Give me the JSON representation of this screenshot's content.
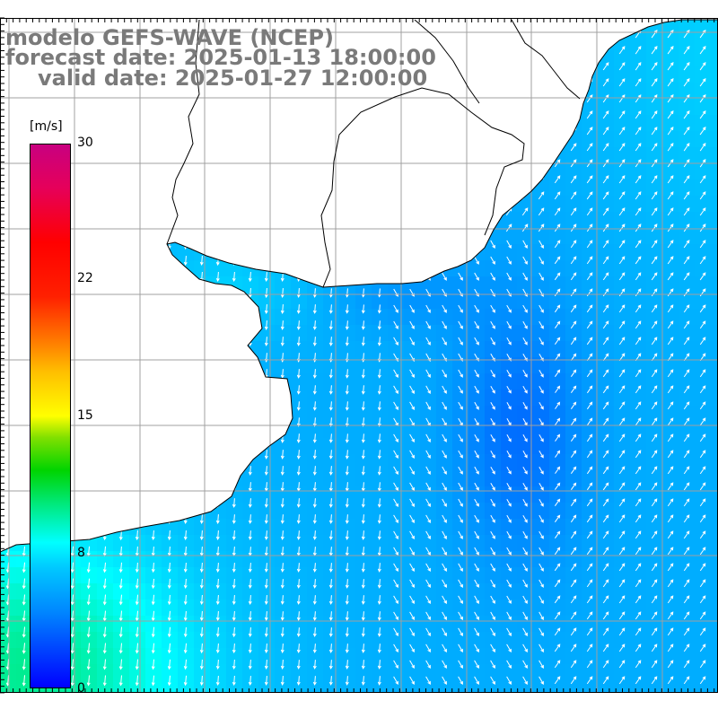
{
  "title": {
    "line1": "modelo GEFS-WAVE (NCEP)",
    "line2": "forecast date: 2025-01-13 18:00:00",
    "line3": "valid date: 2025-01-27 12:00:00"
  },
  "legend": {
    "unit": "[m/s]",
    "max_label": "30",
    "tick_22": "22",
    "tick_15": "15",
    "tick_8": "8",
    "min_label": "0",
    "value_min": 0,
    "value_max": 30
  },
  "colors": {
    "land": "#ffffff",
    "grid": "#a0a0a0",
    "coast": "#000000",
    "arrow": "#ffffff",
    "title": "#7a7a7a",
    "low_wind": "#0000ff",
    "high_wind": "#c80080"
  }
}
